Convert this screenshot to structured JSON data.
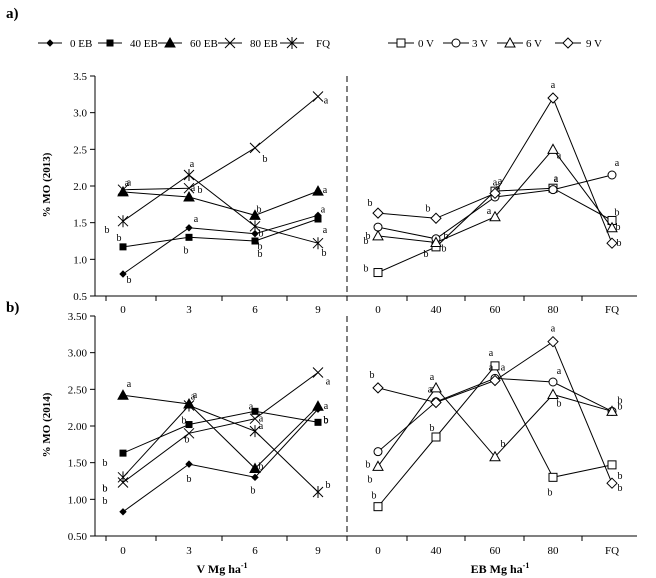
{
  "panels": [
    {
      "label": "a)",
      "ylabel": "% MO (2013)"
    },
    {
      "label": "b)",
      "ylabel": "% MO (2014)"
    }
  ],
  "xtitles": {
    "left": "V Mg ha",
    "left_sup": "-1",
    "right": "EB Mg ha",
    "right_sup": "-1"
  },
  "legend_left": [
    {
      "name": "0 EB",
      "marker": "diamond-small"
    },
    {
      "name": "40 EB",
      "marker": "square-small"
    },
    {
      "name": "60 EB",
      "marker": "triangle-filled"
    },
    {
      "name": "80 EB",
      "marker": "x"
    },
    {
      "name": "FQ",
      "marker": "star"
    }
  ],
  "legend_right": [
    {
      "name": "0 V",
      "marker": "square-open"
    },
    {
      "name": "3 V",
      "marker": "circle-open"
    },
    {
      "name": "6 V",
      "marker": "triangle-open"
    },
    {
      "name": "9 V",
      "marker": "diamond-open"
    }
  ],
  "chart_data": [
    {
      "type": "line",
      "title": "a)",
      "ylabel": "% MO (2013)",
      "ylim": [
        0.5,
        3.5
      ],
      "yticks": [
        "0.5",
        "1.0",
        "1.5",
        "2.0",
        "2.5",
        "3.0",
        "3.5"
      ],
      "left": {
        "xlabel": "V Mg ha-1",
        "categories": [
          "0",
          "3",
          "6",
          "9"
        ],
        "series": [
          {
            "name": "0 EB",
            "marker": "diamond-small",
            "values": [
              0.8,
              1.43,
              1.35,
              1.6
            ],
            "letters": [
              "b",
              "a",
              "b",
              "a"
            ]
          },
          {
            "name": "40 EB",
            "marker": "square-small",
            "values": [
              1.17,
              1.3,
              1.25,
              1.55
            ],
            "letters": [
              "b",
              "b",
              "b",
              "a"
            ]
          },
          {
            "name": "60 EB",
            "marker": "triangle-filled",
            "values": [
              1.92,
              1.85,
              1.6,
              1.93
            ],
            "letters": [
              "a",
              "a",
              "b",
              "a"
            ]
          },
          {
            "name": "80 EB",
            "marker": "x",
            "values": [
              1.95,
              1.97,
              2.52,
              3.22
            ],
            "letters": [
              "a",
              "b",
              "b",
              "a"
            ]
          },
          {
            "name": "FQ",
            "marker": "star",
            "values": [
              1.52,
              2.15,
              1.45,
              1.22
            ],
            "letters": [
              "b",
              "a",
              "b",
              "b"
            ]
          }
        ]
      },
      "right": {
        "xlabel": "EB Mg ha-1",
        "categories": [
          "0",
          "40",
          "60",
          "80",
          "FQ"
        ],
        "series": [
          {
            "name": "0 V",
            "marker": "square-open",
            "values": [
              0.82,
              1.17,
              1.93,
              1.97,
              1.53
            ],
            "letters": [
              "b",
              "b",
              "a",
              "a",
              "b"
            ]
          },
          {
            "name": "3 V",
            "marker": "circle-open",
            "values": [
              1.44,
              1.28,
              1.85,
              1.95,
              2.15
            ],
            "letters": [
              "b",
              "b",
              "a",
              "a",
              "a"
            ]
          },
          {
            "name": "6 V",
            "marker": "triangle-open",
            "values": [
              1.32,
              1.23,
              1.58,
              2.5,
              1.43
            ],
            "letters": [
              "b",
              "b",
              "a",
              "a",
              "b"
            ]
          },
          {
            "name": "9 V",
            "marker": "diamond-open",
            "values": [
              1.63,
              1.56,
              1.9,
              3.2,
              1.22
            ],
            "letters": [
              "b",
              "b",
              "a",
              "a",
              "b"
            ]
          }
        ]
      }
    },
    {
      "type": "line",
      "title": "b)",
      "ylabel": "% MO (2014)",
      "ylim": [
        0.5,
        3.5
      ],
      "yticks": [
        "0.50",
        "1.00",
        "1.50",
        "2.00",
        "2.50",
        "3.00",
        "3.50"
      ],
      "left": {
        "xlabel": "V Mg ha-1",
        "categories": [
          "0",
          "3",
          "6",
          "9"
        ],
        "series": [
          {
            "name": "0 EB",
            "marker": "diamond-small",
            "values": [
              0.83,
              1.48,
              1.3,
              2.23
            ],
            "letters": [
              "b",
              "b",
              "b",
              "b"
            ]
          },
          {
            "name": "40 EB",
            "marker": "square-small",
            "values": [
              1.63,
              2.02,
              2.2,
              2.05
            ],
            "letters": [
              "b",
              "b",
              "a",
              "b"
            ]
          },
          {
            "name": "60 EB",
            "marker": "triangle-filled",
            "values": [
              2.42,
              2.3,
              1.42,
              2.27
            ],
            "letters": [
              "a",
              "a",
              "b",
              "a"
            ]
          },
          {
            "name": "80 EB",
            "marker": "x",
            "values": [
              1.23,
              1.9,
              2.1,
              2.73
            ],
            "letters": [
              "b",
              "b",
              "a",
              "a"
            ]
          },
          {
            "name": "FQ",
            "marker": "star",
            "values": [
              1.3,
              2.28,
              1.93,
              1.1
            ],
            "letters": [
              "b",
              "a",
              "a",
              "b"
            ]
          }
        ]
      },
      "right": {
        "xlabel": "EB Mg ha-1",
        "categories": [
          "0",
          "40",
          "60",
          "80",
          "FQ"
        ],
        "series": [
          {
            "name": "0 V",
            "marker": "square-open",
            "values": [
              0.9,
              1.85,
              2.82,
              1.3,
              1.47
            ],
            "letters": [
              "b",
              "b",
              "a",
              "b",
              "b"
            ]
          },
          {
            "name": "3 V",
            "marker": "circle-open",
            "values": [
              1.65,
              2.33,
              2.65,
              2.6,
              2.2
            ],
            "letters": [
              "b",
              "a",
              "a",
              "a",
              "b"
            ]
          },
          {
            "name": "6 V",
            "marker": "triangle-open",
            "values": [
              1.45,
              2.52,
              1.58,
              2.43,
              2.2
            ],
            "letters": [
              "b",
              "a",
              "b",
              "b",
              "b"
            ]
          },
          {
            "name": "9 V",
            "marker": "diamond-open",
            "values": [
              2.52,
              2.32,
              2.62,
              3.15,
              1.22
            ],
            "letters": [
              "b",
              "a",
              "a",
              "a",
              "b"
            ]
          }
        ]
      }
    }
  ]
}
